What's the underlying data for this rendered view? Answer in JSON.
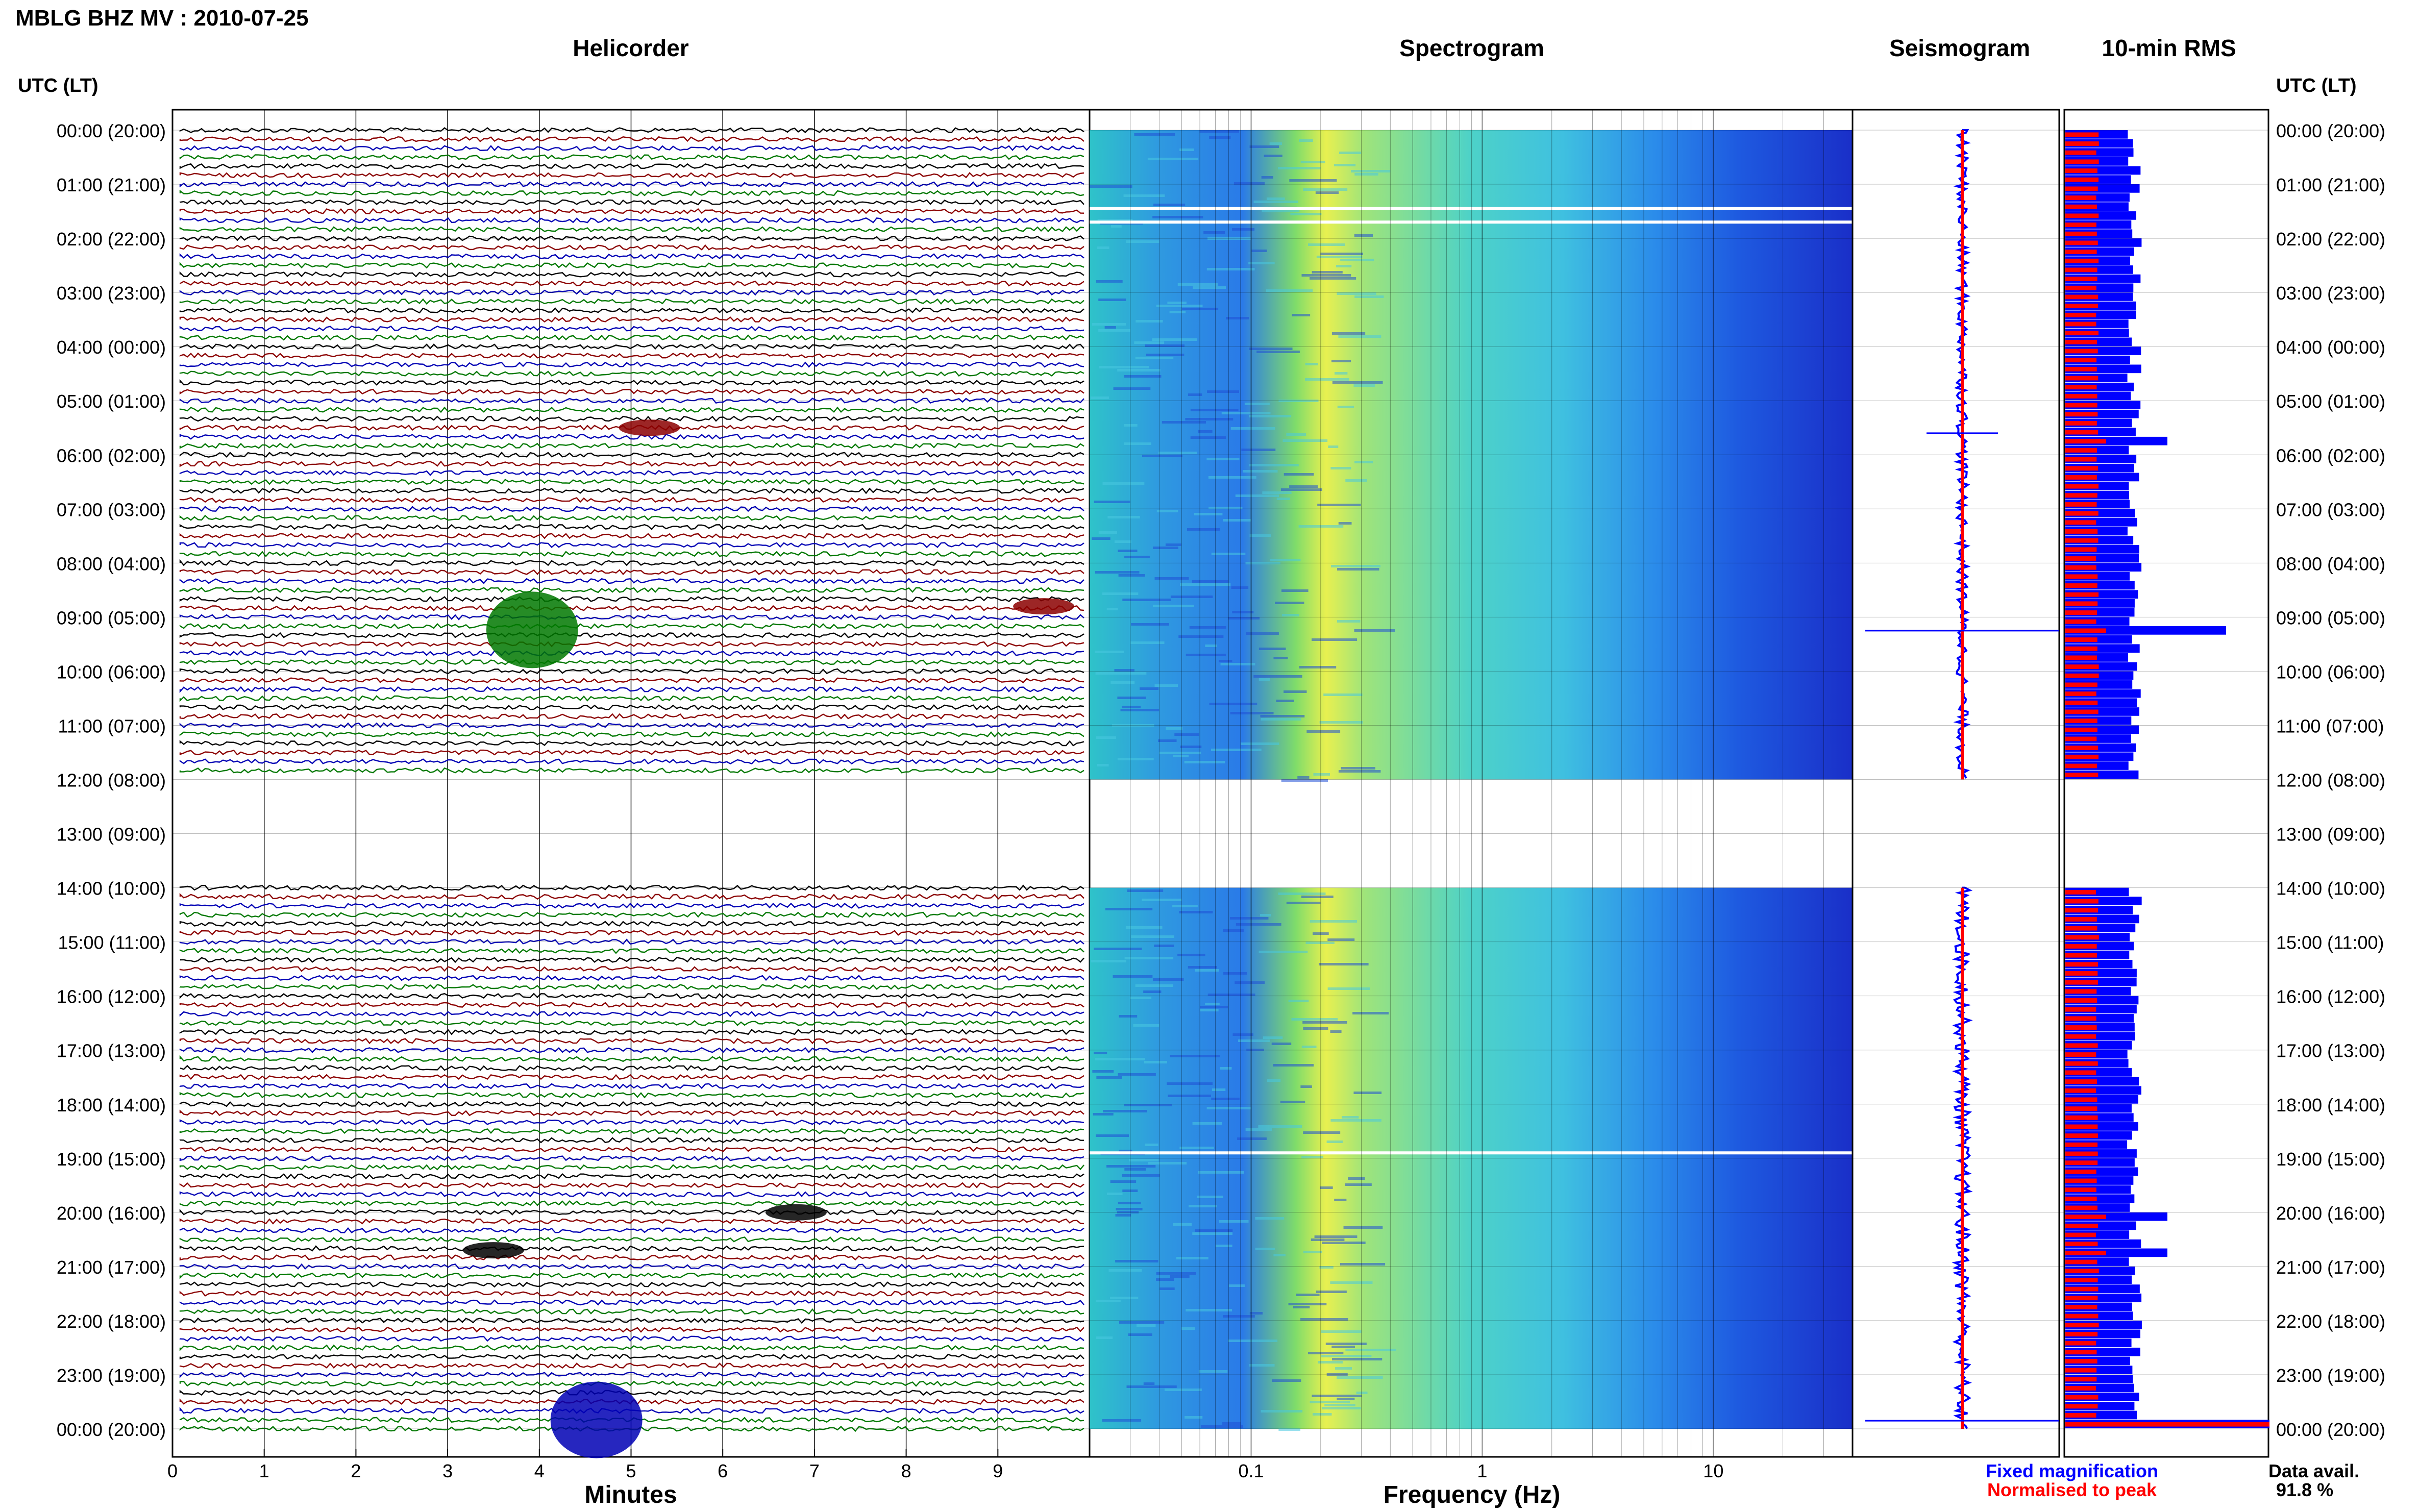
{
  "header": {
    "title": "MBLG BHZ MV : 2010-07-25",
    "utc_left": "UTC (LT)",
    "utc_right": "UTC (LT)"
  },
  "panels": {
    "helicorder": "Helicorder",
    "spectrogram": "Spectrogram",
    "seismogram": "Seismogram",
    "rms": "10-min RMS"
  },
  "footer": {
    "minutes_label": "Minutes",
    "frequency_label": "Frequency (Hz)",
    "legend_fixed": "Fixed magnification",
    "legend_normalised": "Normalised to peak",
    "data_avail_label": "Data avail.",
    "data_avail_value": "91.8 %"
  },
  "colors": {
    "fixed": "#0000ff",
    "normalised": "#ff0000",
    "trace_colors": [
      "#000000",
      "#8b0000",
      "#0000b4",
      "#007800"
    ]
  },
  "chart_data": [
    {
      "type": "line",
      "name": "helicorder",
      "xlabel": "Minutes",
      "x_ticks": [
        0,
        1,
        2,
        3,
        4,
        5,
        6,
        7,
        8,
        9
      ],
      "xlim": [
        0,
        10
      ],
      "hour_labels": [
        "00:00 (20:00)",
        "01:00 (21:00)",
        "02:00 (22:00)",
        "03:00 (23:00)",
        "04:00 (00:00)",
        "05:00 (01:00)",
        "06:00 (02:00)",
        "07:00 (03:00)",
        "08:00 (04:00)",
        "09:00 (05:00)",
        "10:00 (06:00)",
        "11:00 (07:00)",
        "12:00 (08:00)",
        "13:00 (09:00)",
        "14:00 (10:00)",
        "15:00 (11:00)",
        "16:00 (12:00)",
        "17:00 (13:00)",
        "18:00 (14:00)",
        "19:00 (15:00)",
        "20:00 (16:00)",
        "21:00 (17:00)",
        "22:00 (18:00)",
        "23:00 (19:00)",
        "00:00 (20:00)"
      ],
      "gap_hours": [
        12,
        14
      ],
      "events": [
        {
          "hour": 5.5,
          "minute": 5.2,
          "color": "#8b0000"
        },
        {
          "hour": 9.0,
          "minute": 3.7,
          "color": "#007800"
        },
        {
          "hour": 8.8,
          "minute": 9.5,
          "color": "#8b0000"
        },
        {
          "hour": 20.0,
          "minute": 6.8,
          "color": "#000000"
        },
        {
          "hour": 20.7,
          "minute": 3.5,
          "color": "#000000"
        },
        {
          "hour": 23.6,
          "minute": 4.4,
          "color": "#0000b4"
        }
      ]
    },
    {
      "type": "heatmap",
      "name": "spectrogram",
      "xlabel": "Frequency (Hz)",
      "x_scale": "log",
      "x_ticks": [
        0.1,
        1,
        10
      ],
      "xlim": [
        0.02,
        40
      ]
    },
    {
      "type": "line",
      "name": "seismogram",
      "legend": [
        "Fixed magnification",
        "Normalised to peak"
      ]
    },
    {
      "type": "bar",
      "name": "10-min RMS",
      "series": [
        {
          "name": "Fixed magnification",
          "color": "#0000ff"
        },
        {
          "name": "Normalised to peak",
          "color": "#ff0000"
        }
      ],
      "notable_bars_hours": [
        5.6,
        9.1,
        20.0,
        20.7,
        23.9
      ]
    }
  ]
}
